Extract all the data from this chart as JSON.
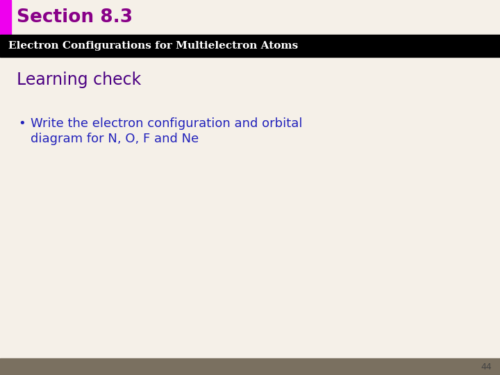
{
  "section_title": "Section 8.3",
  "section_title_color": "#880088",
  "subtitle_bar_text": "Electron Configurations for Multielectron Atoms",
  "subtitle_bar_color": "#000000",
  "subtitle_text_color": "#ffffff",
  "learning_check_title": "Learning check",
  "learning_check_color": "#4b0082",
  "bullet_text_line1": "Write the electron configuration and orbital",
  "bullet_text_line2": "diagram for N, O, F and Ne",
  "bullet_text_color": "#2222bb",
  "background_color": "#f5f0e8",
  "left_bar_color": "#ee00ee",
  "footer_bar_color": "#7a7060",
  "page_number": "44",
  "page_number_color": "#444444",
  "fig_width": 7.2,
  "fig_height": 5.4,
  "dpi": 100
}
